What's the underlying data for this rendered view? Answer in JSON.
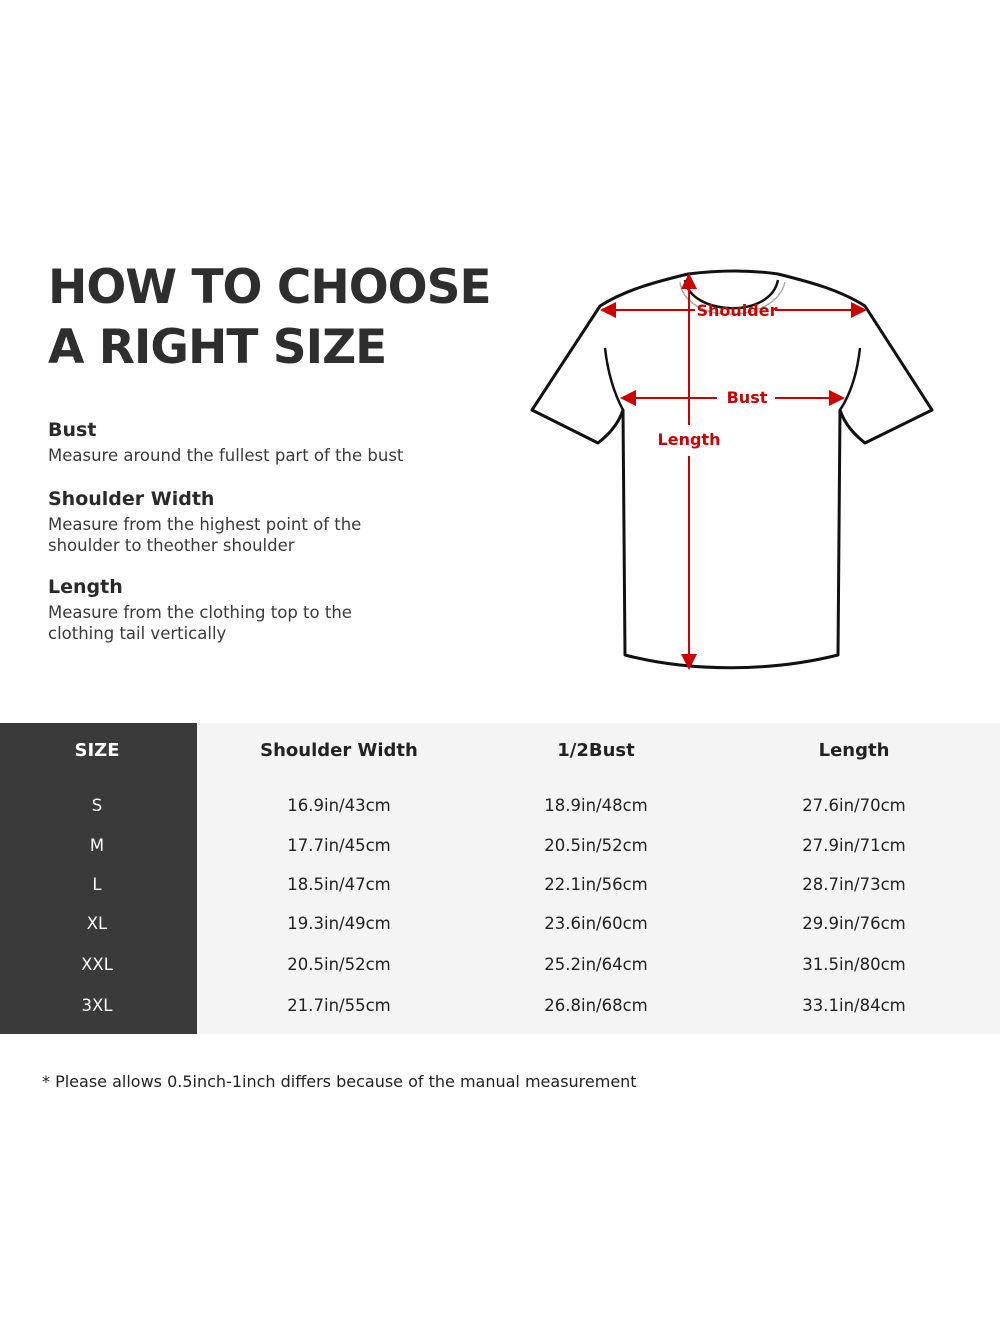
{
  "heading": {
    "line1": "HOW TO CHOOSE",
    "line2": "A RIGHT SIZE"
  },
  "guide": [
    {
      "title": "Bust",
      "text": "Measure around the fullest part of the bust"
    },
    {
      "title": "Shoulder Width",
      "text": "Measure from the highest point of the shoulder to theother shoulder"
    },
    {
      "title": "Length",
      "text": "Measure from the clothing top to the clothing tail vertically"
    }
  ],
  "diagram": {
    "shoulder": "Shoulder",
    "bust": "Bust",
    "length": "Length",
    "accent": "#cc0000"
  },
  "table": {
    "headers": [
      "SIZE",
      "Shoulder Width",
      "1/2Bust",
      "Length"
    ],
    "rows": [
      [
        "S",
        "16.9in/43cm",
        "18.9in/48cm",
        "27.6in/70cm"
      ],
      [
        "M",
        "17.7in/45cm",
        "20.5in/52cm",
        "27.9in/71cm"
      ],
      [
        "L",
        "18.5in/47cm",
        "22.1in/56cm",
        "28.7in/73cm"
      ],
      [
        "XL",
        "19.3in/49cm",
        "23.6in/60cm",
        "29.9in/76cm"
      ],
      [
        "XXL",
        "20.5in/52cm",
        "25.2in/64cm",
        "31.5in/80cm"
      ],
      [
        "3XL",
        "21.7in/55cm",
        "26.8in/68cm",
        "33.1in/84cm"
      ]
    ]
  },
  "note": "* Please allows 0.5inch-1inch differs because of the  manual measurement"
}
